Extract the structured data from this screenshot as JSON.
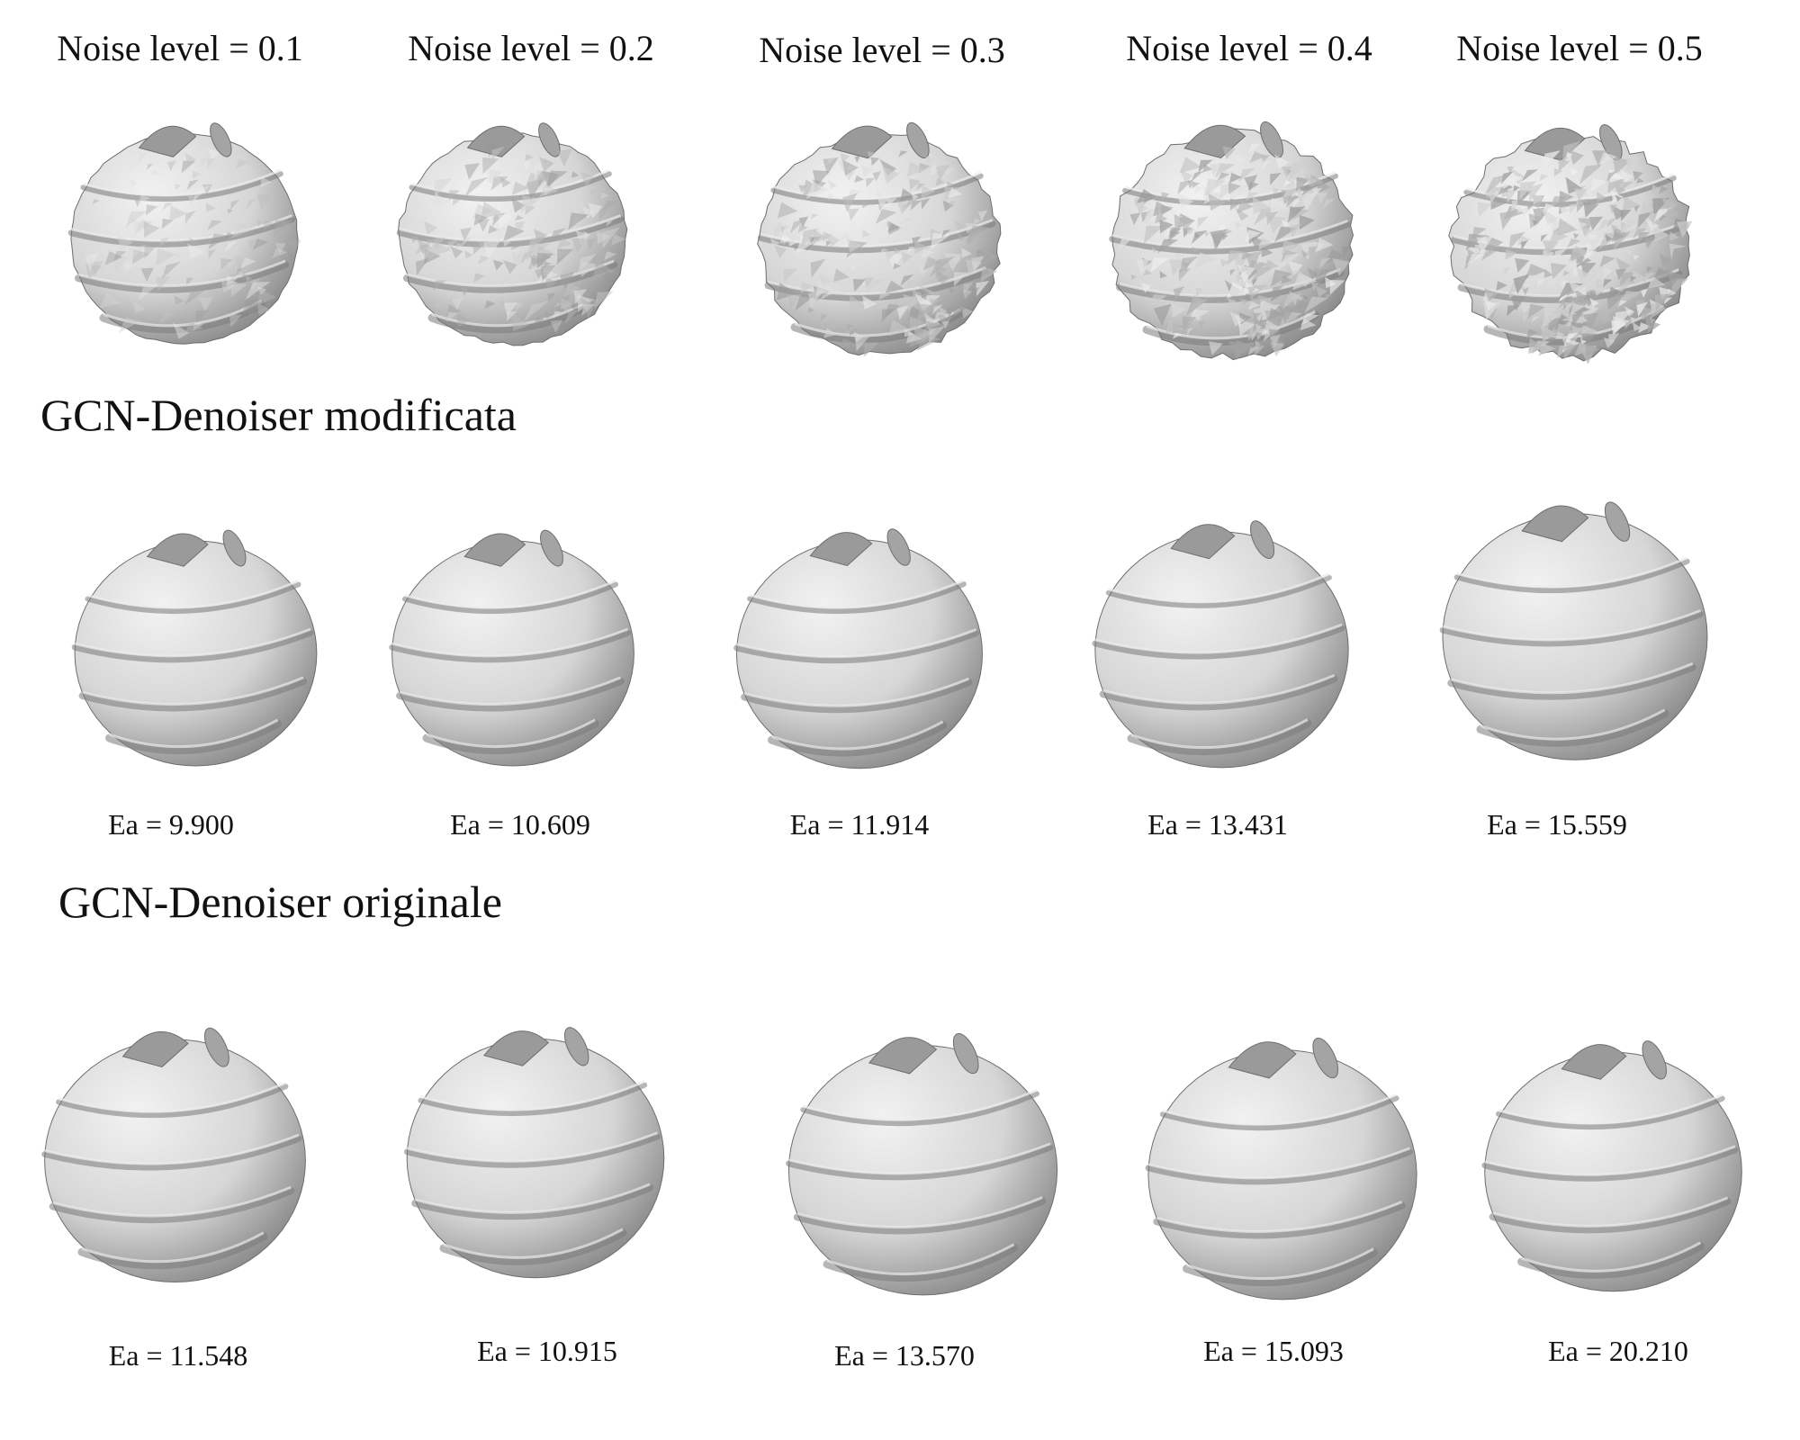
{
  "noise_labels": [
    "Noise level = 0.1",
    "Noise level = 0.2",
    "Noise level = 0.3",
    "Noise level = 0.4",
    "Noise level = 0.5"
  ],
  "sections": {
    "modified": {
      "title": "GCN-Denoiser modificata",
      "errors": [
        "Ea = 9.900",
        "Ea = 10.609",
        "Ea = 11.914",
        "Ea = 13.431",
        "Ea = 15.559"
      ]
    },
    "original": {
      "title": "GCN-Denoiser originale",
      "errors": [
        "Ea = 11.548",
        "Ea = 10.915",
        "Ea = 13.570",
        "Ea = 15.093",
        "Ea = 20.210"
      ]
    }
  },
  "colors": {
    "mesh_fill": "#d6d6d6",
    "mesh_shadow": "#8c8c8c",
    "mesh_edge": "#6e6e6e",
    "background": "#ffffff"
  },
  "mesh_noise": [
    0.1,
    0.2,
    0.3,
    0.4,
    0.5
  ]
}
